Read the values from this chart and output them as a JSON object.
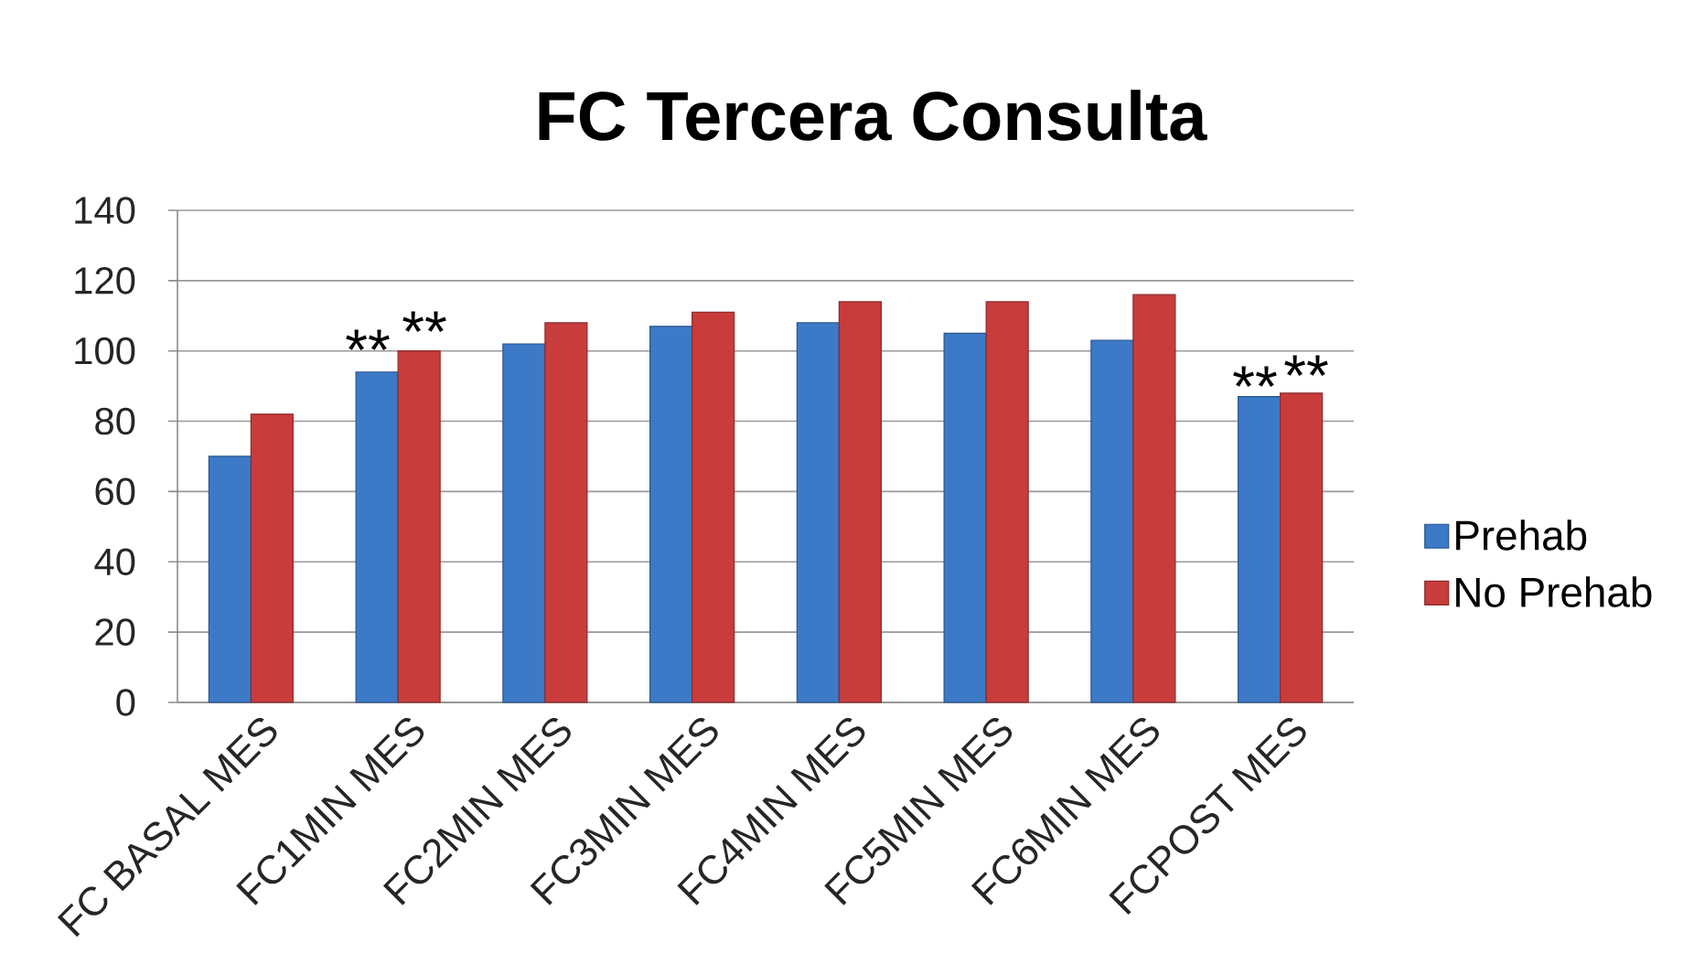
{
  "chart_data": {
    "type": "bar",
    "title": "FC Tercera Consulta",
    "categories": [
      "FC BASAL MES",
      "FC1MIN MES",
      "FC2MIN MES",
      "FC3MIN MES",
      "FC4MIN MES",
      "FC5MIN MES",
      "FC6MIN MES",
      "FCPOST MES"
    ],
    "series": [
      {
        "name": "Prehab",
        "color": "#3c7ac8",
        "values": [
          70,
          94,
          102,
          107,
          108,
          105,
          103,
          87
        ]
      },
      {
        "name": "No Prehab",
        "color": "#c83c3c",
        "values": [
          82,
          100,
          108,
          111,
          114,
          114,
          116,
          88
        ]
      }
    ],
    "ylim": [
      0,
      140
    ],
    "yticks": [
      0,
      20,
      40,
      60,
      80,
      100,
      120,
      140
    ],
    "grid": "y",
    "legend": "right",
    "annotations": [
      "**",
      "**",
      "**",
      "**"
    ]
  }
}
